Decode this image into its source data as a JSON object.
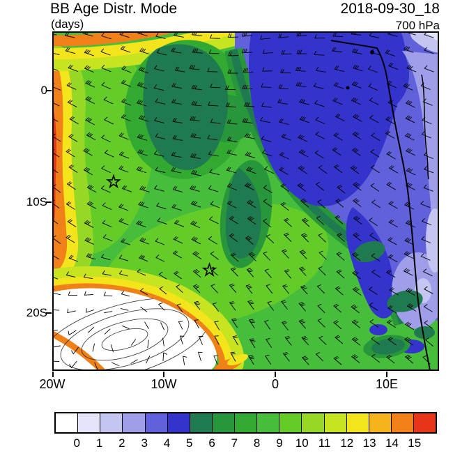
{
  "header": {
    "title": "BB Age Distr. Mode",
    "units_label": "(days)",
    "datetime": "2018-09-30_18",
    "level": "700 hPa"
  },
  "axes": {
    "lat_ticks": [
      {
        "label": "0"
      },
      {
        "label": "10S"
      },
      {
        "label": "20S"
      }
    ],
    "lon_ticks": [
      {
        "label": "20W"
      },
      {
        "label": "10W"
      },
      {
        "label": "0"
      },
      {
        "label": "10E"
      }
    ]
  },
  "colorbar": {
    "colors": [
      "#FFFFFF",
      "#E3E3FA",
      "#C5C5F2",
      "#9F9FE9",
      "#6161DC",
      "#3434CC",
      "#1F7A50",
      "#28963A",
      "#32AA32",
      "#46BE3C",
      "#64CC28",
      "#96D824",
      "#C8E420",
      "#F4E41C",
      "#F6B41C",
      "#F08018",
      "#E83418"
    ],
    "labels": [
      "0",
      "1",
      "2",
      "3",
      "4",
      "5",
      "6",
      "7",
      "8",
      "9",
      "10",
      "11",
      "12",
      "13",
      "14",
      "15"
    ]
  },
  "chart_data": {
    "type": "heatmap",
    "title": "BB Age Distr. Mode",
    "units": "days",
    "pressure_level": "700 hPa",
    "valid_time": "2018-09-30_18",
    "extent": {
      "lon_min": -20,
      "lon_max": 14.7,
      "lat_min": -24.8,
      "lat_max": 5.2
    },
    "lon_ticks": [
      "20W",
      "10W",
      "0",
      "10E"
    ],
    "lat_ticks": [
      "0",
      "10S",
      "20S"
    ],
    "colorbar_boundaries": [
      0,
      1,
      2,
      3,
      4,
      5,
      6,
      7,
      8,
      9,
      10,
      11,
      12,
      13,
      14,
      15
    ],
    "overlays": [
      "wind barbs",
      "Africa west coastline",
      "closed streamline contours over white low-age region"
    ],
    "markers": [
      {
        "type": "star",
        "lon": -14.5,
        "lat": -8.1
      },
      {
        "type": "star",
        "lon": -5.9,
        "lat": -15.9
      }
    ],
    "regions": [
      {
        "area": "bulk of central/southern South Atlantic",
        "age_days": "8-11",
        "color": "green to yellow-green"
      },
      {
        "area": "northeast quadrant toward Gulf of Guinea",
        "age_days": "3-5",
        "color": "deep blue"
      },
      {
        "area": "land and coastal strip along right (east) edge",
        "age_days": "1-4",
        "color": "lavender / periwinkle"
      },
      {
        "area": "upper-center patches and blue-green boundary fringe",
        "age_days": "6-7",
        "color": "dark green"
      },
      {
        "area": "western and top-left edge bands",
        "age_days": "12-15+",
        "color": "yellow / orange / red"
      },
      {
        "area": "southwest anticyclone core",
        "age_days": "0-1",
        "color": "white"
      }
    ]
  }
}
